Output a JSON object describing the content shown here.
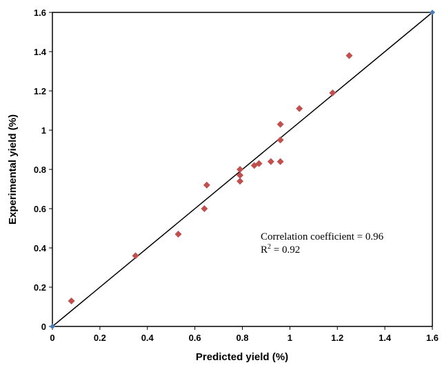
{
  "chart_data": {
    "type": "scatter",
    "xlabel": "Predicted yield (%)",
    "ylabel": "Experimental yield (%)",
    "xlim": [
      0,
      1.6
    ],
    "ylim": [
      0,
      1.6
    ],
    "x_ticks": [
      "0",
      "0.2",
      "0.4",
      "0.6",
      "0.8",
      "1",
      "1.2",
      "1.4",
      "1.6"
    ],
    "y_ticks": [
      "0",
      "0.2",
      "0.4",
      "0.6",
      "0.8",
      "1",
      "1.2",
      "1.4",
      "1.6"
    ],
    "grid": false,
    "series": [
      {
        "marker": "diamond",
        "color": "#c0504d",
        "points": [
          [
            0.08,
            0.13
          ],
          [
            0.35,
            0.36
          ],
          [
            0.53,
            0.47
          ],
          [
            0.64,
            0.6
          ],
          [
            0.65,
            0.72
          ],
          [
            0.79,
            0.74
          ],
          [
            0.79,
            0.77
          ],
          [
            0.79,
            0.8
          ],
          [
            0.85,
            0.82
          ],
          [
            0.87,
            0.83
          ],
          [
            0.92,
            0.84
          ],
          [
            0.96,
            0.84
          ],
          [
            0.96,
            0.95
          ],
          [
            0.96,
            1.03
          ],
          [
            1.04,
            1.11
          ],
          [
            1.18,
            1.19
          ],
          [
            1.25,
            1.38
          ]
        ]
      }
    ],
    "reference_line": {
      "from": [
        0,
        0
      ],
      "to": [
        1.6,
        1.6
      ],
      "color": "#000000",
      "endpoint_color": "#4a7ebb"
    },
    "annotation": {
      "line1": "Correlation coefficient = 0.96",
      "line2_prefix": "R",
      "line2_sup": "2",
      "line2_suffix": " = 0.92"
    }
  }
}
